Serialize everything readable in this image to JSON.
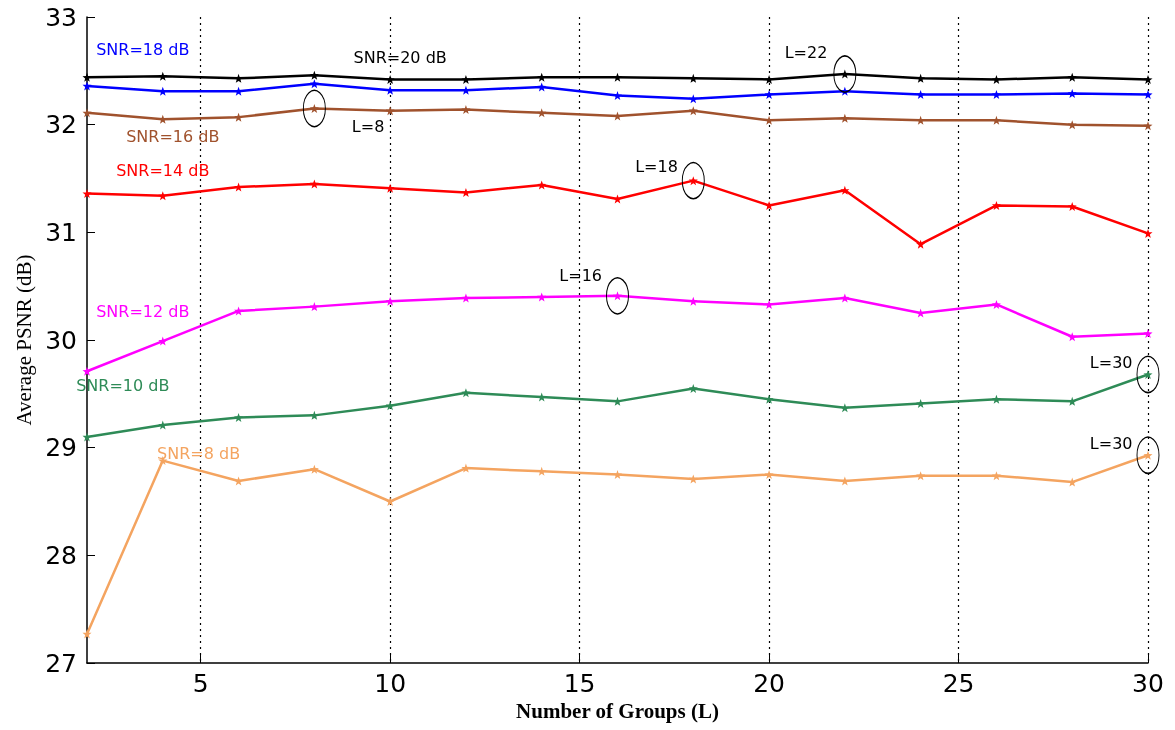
{
  "chart_data": {
    "type": "line",
    "xlabel": "Number of Groups (L)",
    "ylabel": "Average PSNR (dB)",
    "x": [
      2,
      4,
      6,
      8,
      10,
      12,
      14,
      16,
      18,
      20,
      22,
      24,
      26,
      28,
      30
    ],
    "xlim": [
      2,
      30
    ],
    "xticks": [
      5,
      10,
      15,
      20,
      25,
      30
    ],
    "ylim": [
      27,
      33
    ],
    "yticks": [
      27,
      28,
      29,
      30,
      31,
      32,
      33
    ],
    "grid": "x",
    "legend": false,
    "marker": "star",
    "line_style": "solid",
    "series": [
      {
        "name": "SNR=20 dB",
        "color": "#000000",
        "values": [
          32.44,
          32.45,
          32.43,
          32.46,
          32.42,
          32.42,
          32.44,
          32.44,
          32.43,
          32.42,
          32.47,
          32.43,
          32.42,
          32.44,
          32.42
        ]
      },
      {
        "name": "SNR=18 dB",
        "color": "#0000ff",
        "values": [
          32.36,
          32.31,
          32.31,
          32.38,
          32.32,
          32.32,
          32.35,
          32.27,
          32.24,
          32.28,
          32.31,
          32.28,
          32.28,
          32.29,
          32.28
        ]
      },
      {
        "name": "SNR=16 dB",
        "color": "#a0522d",
        "values": [
          32.11,
          32.05,
          32.07,
          32.15,
          32.13,
          32.14,
          32.11,
          32.08,
          32.13,
          32.04,
          32.06,
          32.04,
          32.04,
          32.0,
          31.99
        ]
      },
      {
        "name": "SNR=14 dB",
        "color": "#ff0000",
        "values": [
          31.36,
          31.34,
          31.42,
          31.45,
          31.41,
          31.37,
          31.44,
          31.31,
          31.48,
          31.25,
          31.39,
          30.89,
          31.25,
          31.24,
          30.99
        ]
      },
      {
        "name": "SNR=12 dB",
        "color": "#ff00ff",
        "values": [
          29.71,
          29.99,
          30.27,
          30.31,
          30.36,
          30.39,
          30.4,
          30.41,
          30.36,
          30.33,
          30.39,
          30.25,
          30.33,
          30.03,
          30.06
        ]
      },
      {
        "name": "SNR=10 dB",
        "color": "#2e8b57",
        "values": [
          29.1,
          29.21,
          29.28,
          29.3,
          29.39,
          29.51,
          29.47,
          29.43,
          29.55,
          29.45,
          29.37,
          29.41,
          29.45,
          29.43,
          29.68
        ]
      },
      {
        "name": "SNR=8 dB",
        "color": "#f4a460",
        "values": [
          27.27,
          28.88,
          28.69,
          28.8,
          28.5,
          28.81,
          28.78,
          28.75,
          28.71,
          28.75,
          28.69,
          28.74,
          28.74,
          28.68,
          28.93
        ]
      }
    ],
    "annotations": [
      {
        "text": "L=8",
        "x": 8,
        "y": 32.15
      },
      {
        "text": "L=22",
        "x": 22,
        "y": 32.47
      },
      {
        "text": "L=18",
        "x": 18,
        "y": 31.48
      },
      {
        "text": "L=16",
        "x": 16,
        "y": 30.41
      },
      {
        "text": "L=30",
        "x": 30,
        "y": 29.68
      },
      {
        "text": "L=30",
        "x": 30,
        "y": 28.93
      }
    ]
  }
}
